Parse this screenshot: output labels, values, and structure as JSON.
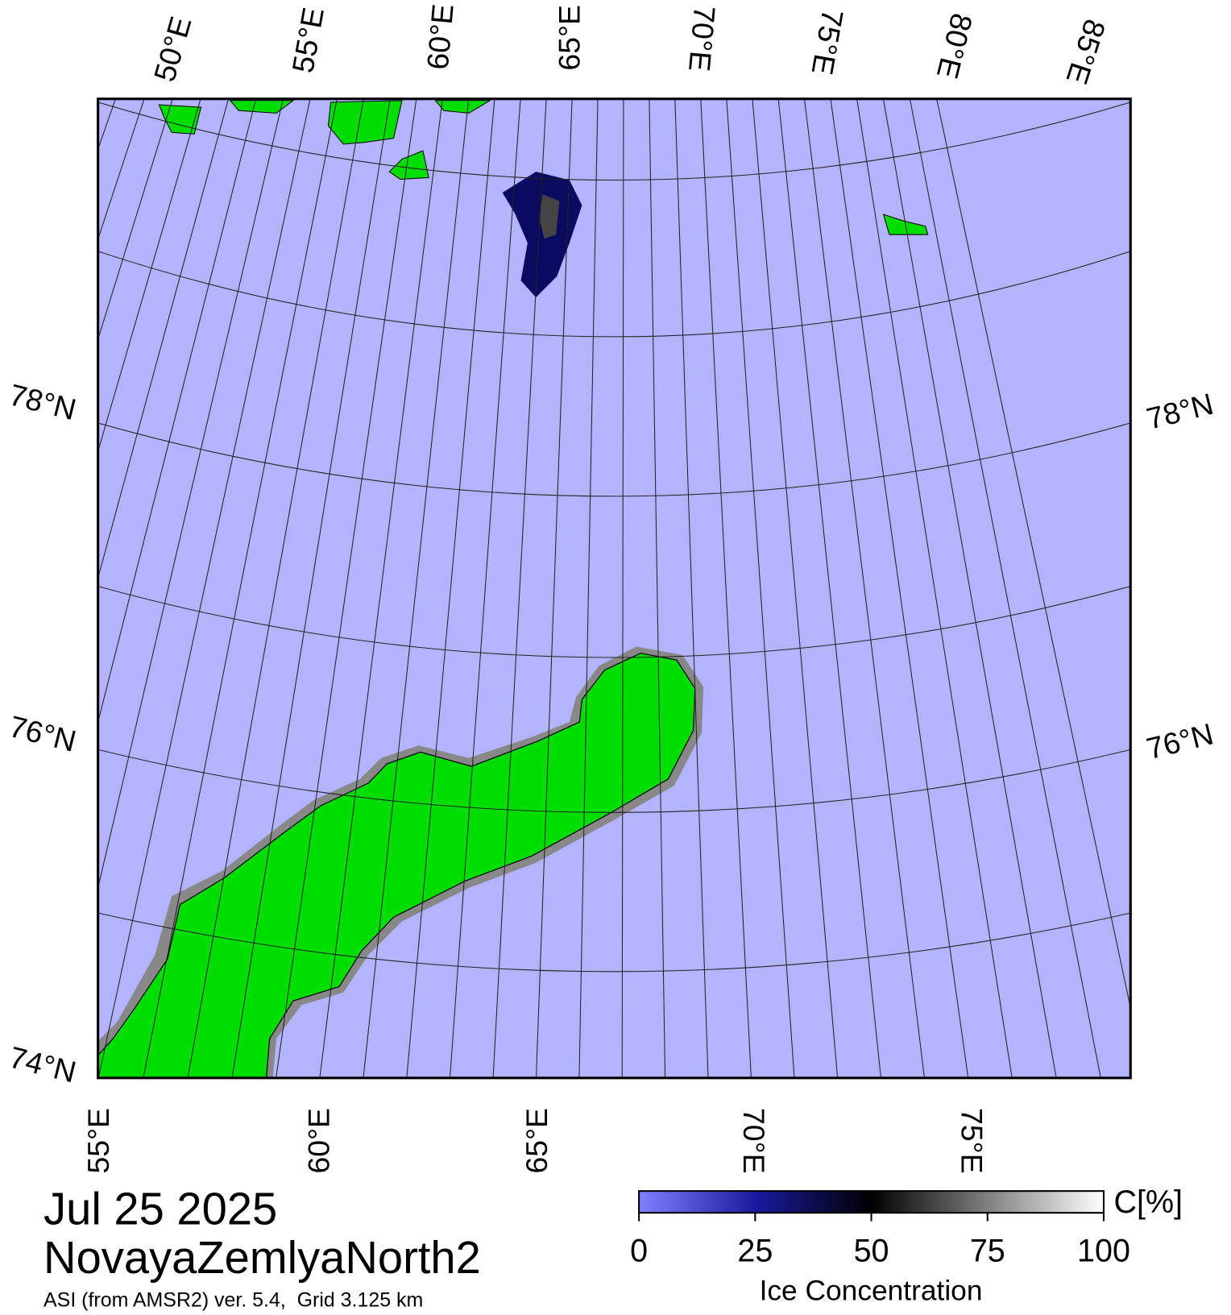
{
  "map": {
    "top_lon_labels": [
      "50°E",
      "55°E",
      "60°E",
      "65°E",
      "70°E",
      "75°E",
      "80°E",
      "85°E"
    ],
    "left_lat_labels": [
      "78°N",
      "76°N",
      "74°N"
    ],
    "right_lat_labels": [
      "78°N",
      "76°N"
    ],
    "bottom_lon_labels": [
      "55°E",
      "60°E",
      "65°E",
      "70°E",
      "75°E"
    ]
  },
  "footer": {
    "date": "Jul 25 2025",
    "region": "NovayaZemlyaNorth2",
    "source": "ASI (from AMSR2) ver. 5.4,  Grid 3.125 km"
  },
  "colorbar": {
    "range": [
      0,
      100
    ],
    "ticks": [
      0,
      25,
      50,
      75,
      100
    ],
    "unit": "C[%]",
    "label": "Ice Concentration"
  }
}
